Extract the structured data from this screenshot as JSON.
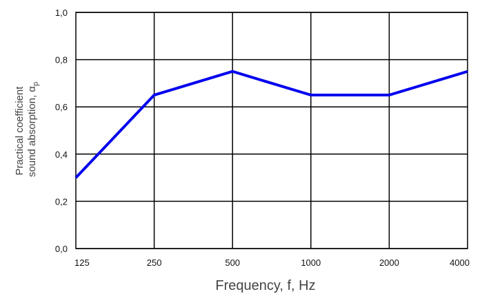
{
  "chart_data": {
    "type": "line",
    "categories": [
      "125",
      "250",
      "500",
      "1000",
      "2000",
      "4000"
    ],
    "series": [
      {
        "values": [
          0.3,
          0.65,
          0.75,
          0.65,
          0.65,
          0.75
        ],
        "color": "#0000ee"
      }
    ],
    "xlabel": "Frequency, f, Hz",
    "ylabel_line1": "Practical coefficient",
    "ylabel_line2": "sound absorption, α",
    "ylabel_subscript": "p",
    "ylim": [
      0,
      1
    ],
    "yticks": [
      "0,0",
      "0,2",
      "0,4",
      "0,6",
      "0,8",
      "1,0"
    ],
    "ytick_values": [
      0,
      0.2,
      0.4,
      0.6,
      0.8,
      1.0
    ],
    "grid": true,
    "legend": "none"
  }
}
